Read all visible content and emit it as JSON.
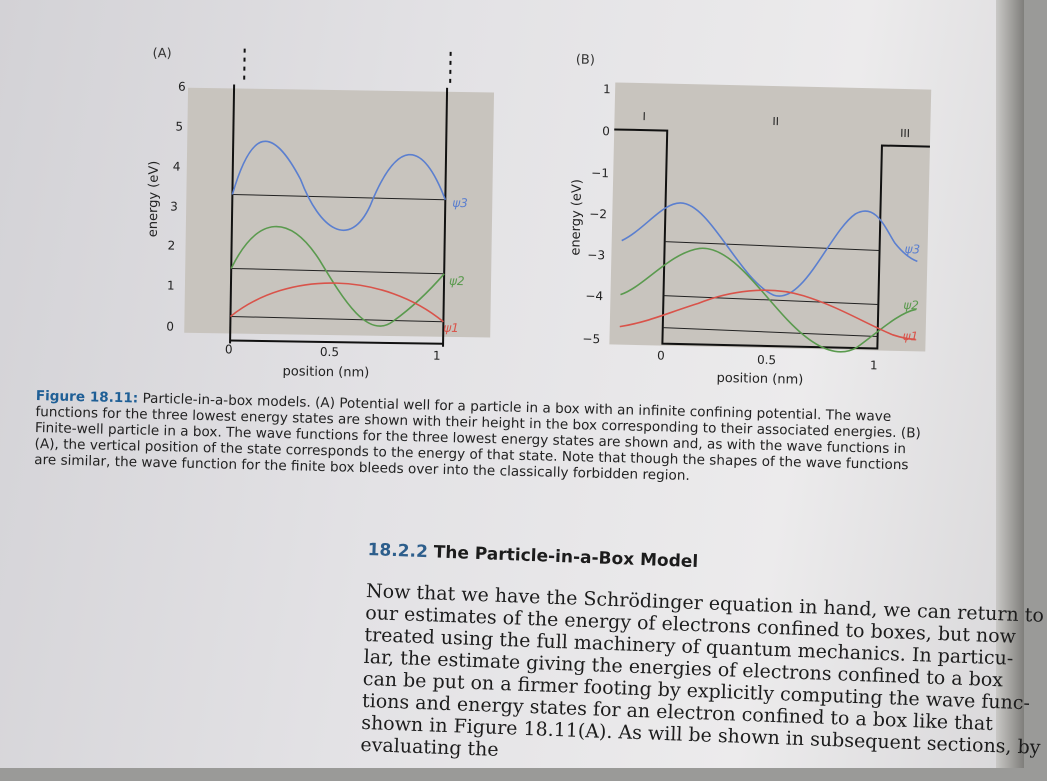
{
  "figure": {
    "panel_a": {
      "label": "(A)",
      "xlabel": "position (nm)",
      "ylabel": "energy (eV)",
      "x_ticks": [
        "0",
        "0.5",
        "1"
      ],
      "y_ticks": [
        "0",
        "1",
        "2",
        "3",
        "4",
        "5",
        "6"
      ],
      "psi_labels": [
        "ψ3",
        "ψ2",
        "ψ1"
      ]
    },
    "panel_b": {
      "label": "(B)",
      "xlabel": "position (nm)",
      "ylabel": "energy (eV)",
      "x_ticks": [
        "0",
        "0.5",
        "1"
      ],
      "y_ticks": [
        "1",
        "0",
        "−1",
        "−2",
        "−3",
        "−4",
        "−5"
      ],
      "region_labels": [
        "I",
        "II",
        "III"
      ],
      "psi_labels": [
        "ψ3",
        "ψ2",
        "ψ1"
      ]
    },
    "colors": {
      "psi1": "#d9534a",
      "psi2": "#5a9a4e",
      "psi3": "#5b7fcf",
      "panel_bg": "#c8c4be",
      "caption_label": "#1f5f96"
    }
  },
  "caption": {
    "label": "Figure 18.11:",
    "lines": [
      " Particle-in-a-box models. (A) Potential well for a particle in a box with an infinite confining potential. The wave",
      "functions for the three lowest energy states are shown with their height in the box corresponding to their associated energies. (B)",
      "Finite-well particle in a box. The wave functions for the three lowest energy states are shown and, as with the wave functions in",
      "(A), the vertical position of the state corresponds to the energy of that state. Note that though the shapes of the wave functions",
      "are similar, the wave function for the finite box bleeds over into the classically forbidden region."
    ]
  },
  "section": {
    "number": "18.2.2",
    "title": "The Particle-in-a-Box Model",
    "lines": [
      "Now that we have the Schrödinger equation in hand, we can return to",
      "our estimates of the energy of electrons confined to boxes, but now",
      "treated using the full machinery of quantum mechanics. In particu-",
      "lar, the estimate giving the energies of electrons confined to a box",
      "can be put on a firmer footing by explicitly computing the wave func-",
      "tions and energy states for an electron confined to a box like that",
      "shown in Figure 18.11(A). As will be shown in subsequent sections, by",
      "evaluating the"
    ]
  }
}
